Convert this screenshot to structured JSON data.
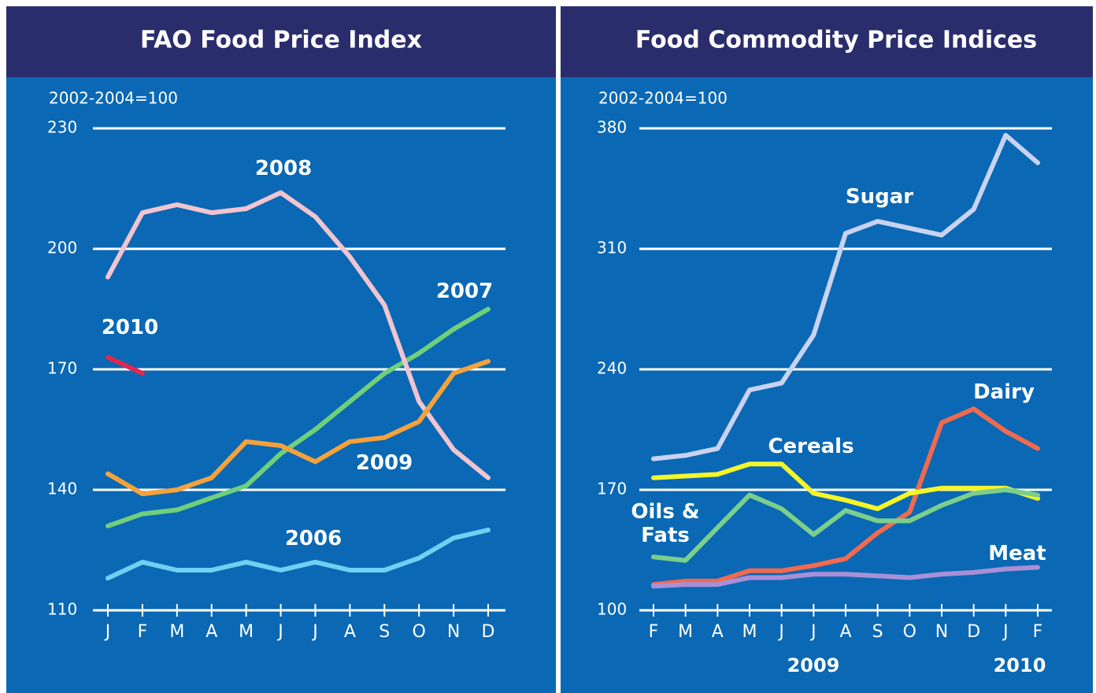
{
  "chart_data": [
    {
      "type": "line",
      "title": "FAO Food Price Index",
      "subtitle": "2002-2004=100",
      "categories": [
        "J",
        "F",
        "M",
        "A",
        "M",
        "J",
        "J",
        "A",
        "S",
        "O",
        "N",
        "D"
      ],
      "ylim": [
        110,
        230
      ],
      "yticks": [
        110,
        140,
        170,
        200,
        230
      ],
      "grid": true,
      "series": [
        {
          "name": "2006",
          "color": "#6fd0f2",
          "values": [
            118,
            122,
            120,
            120,
            122,
            120,
            122,
            120,
            120,
            123,
            128,
            130
          ]
        },
        {
          "name": "2007",
          "color": "#6fcf7a",
          "values": [
            131,
            134,
            135,
            138,
            141,
            149,
            155,
            162,
            169,
            174,
            180,
            185
          ]
        },
        {
          "name": "2008",
          "color": "#f2c4cf",
          "values": [
            193,
            209,
            211,
            209,
            210,
            214,
            208,
            198,
            186,
            162,
            150,
            143
          ]
        },
        {
          "name": "2009",
          "color": "#f5a23a",
          "values": [
            144,
            139,
            140,
            143,
            152,
            151,
            147,
            152,
            153,
            157,
            169,
            172
          ]
        },
        {
          "name": "2010",
          "color": "#e0284e",
          "values": [
            173,
            169,
            null,
            null,
            null,
            null,
            null,
            null,
            null,
            null,
            null,
            null
          ]
        }
      ]
    },
    {
      "type": "line",
      "title": "Food Commodity Price Indices",
      "subtitle": "2002-2004=100",
      "categories": [
        "F",
        "M",
        "A",
        "M",
        "J",
        "J",
        "A",
        "S",
        "O",
        "N",
        "D",
        "J",
        "F"
      ],
      "annotations": [
        "2009",
        "2010"
      ],
      "ylim": [
        100,
        380
      ],
      "yticks": [
        100,
        170,
        240,
        310,
        380
      ],
      "grid": true,
      "series": [
        {
          "name": "Sugar",
          "color": "#c9d3f0",
          "values": [
            188,
            190,
            194,
            228,
            232,
            260,
            319,
            326,
            322,
            318,
            333,
            376,
            360
          ]
        },
        {
          "name": "Dairy",
          "color": "#f06a4e",
          "values": [
            115,
            117,
            117,
            123,
            123,
            126,
            130,
            145,
            157,
            209,
            217,
            204,
            194
          ]
        },
        {
          "name": "Cereals",
          "color": "#f5f52a",
          "values": [
            177,
            178,
            179,
            185,
            185,
            168,
            164,
            159,
            168,
            171,
            171,
            171,
            165
          ]
        },
        {
          "name": "Oils & Fats",
          "color": "#7ccf8a",
          "values": [
            131,
            129,
            148,
            167,
            159,
            144,
            158,
            152,
            152,
            161,
            168,
            170,
            167
          ]
        },
        {
          "name": "Meat",
          "color": "#a98fd8",
          "values": [
            114,
            115,
            115,
            119,
            119,
            121,
            121,
            120,
            119,
            121,
            122,
            124,
            125
          ]
        }
      ]
    }
  ]
}
